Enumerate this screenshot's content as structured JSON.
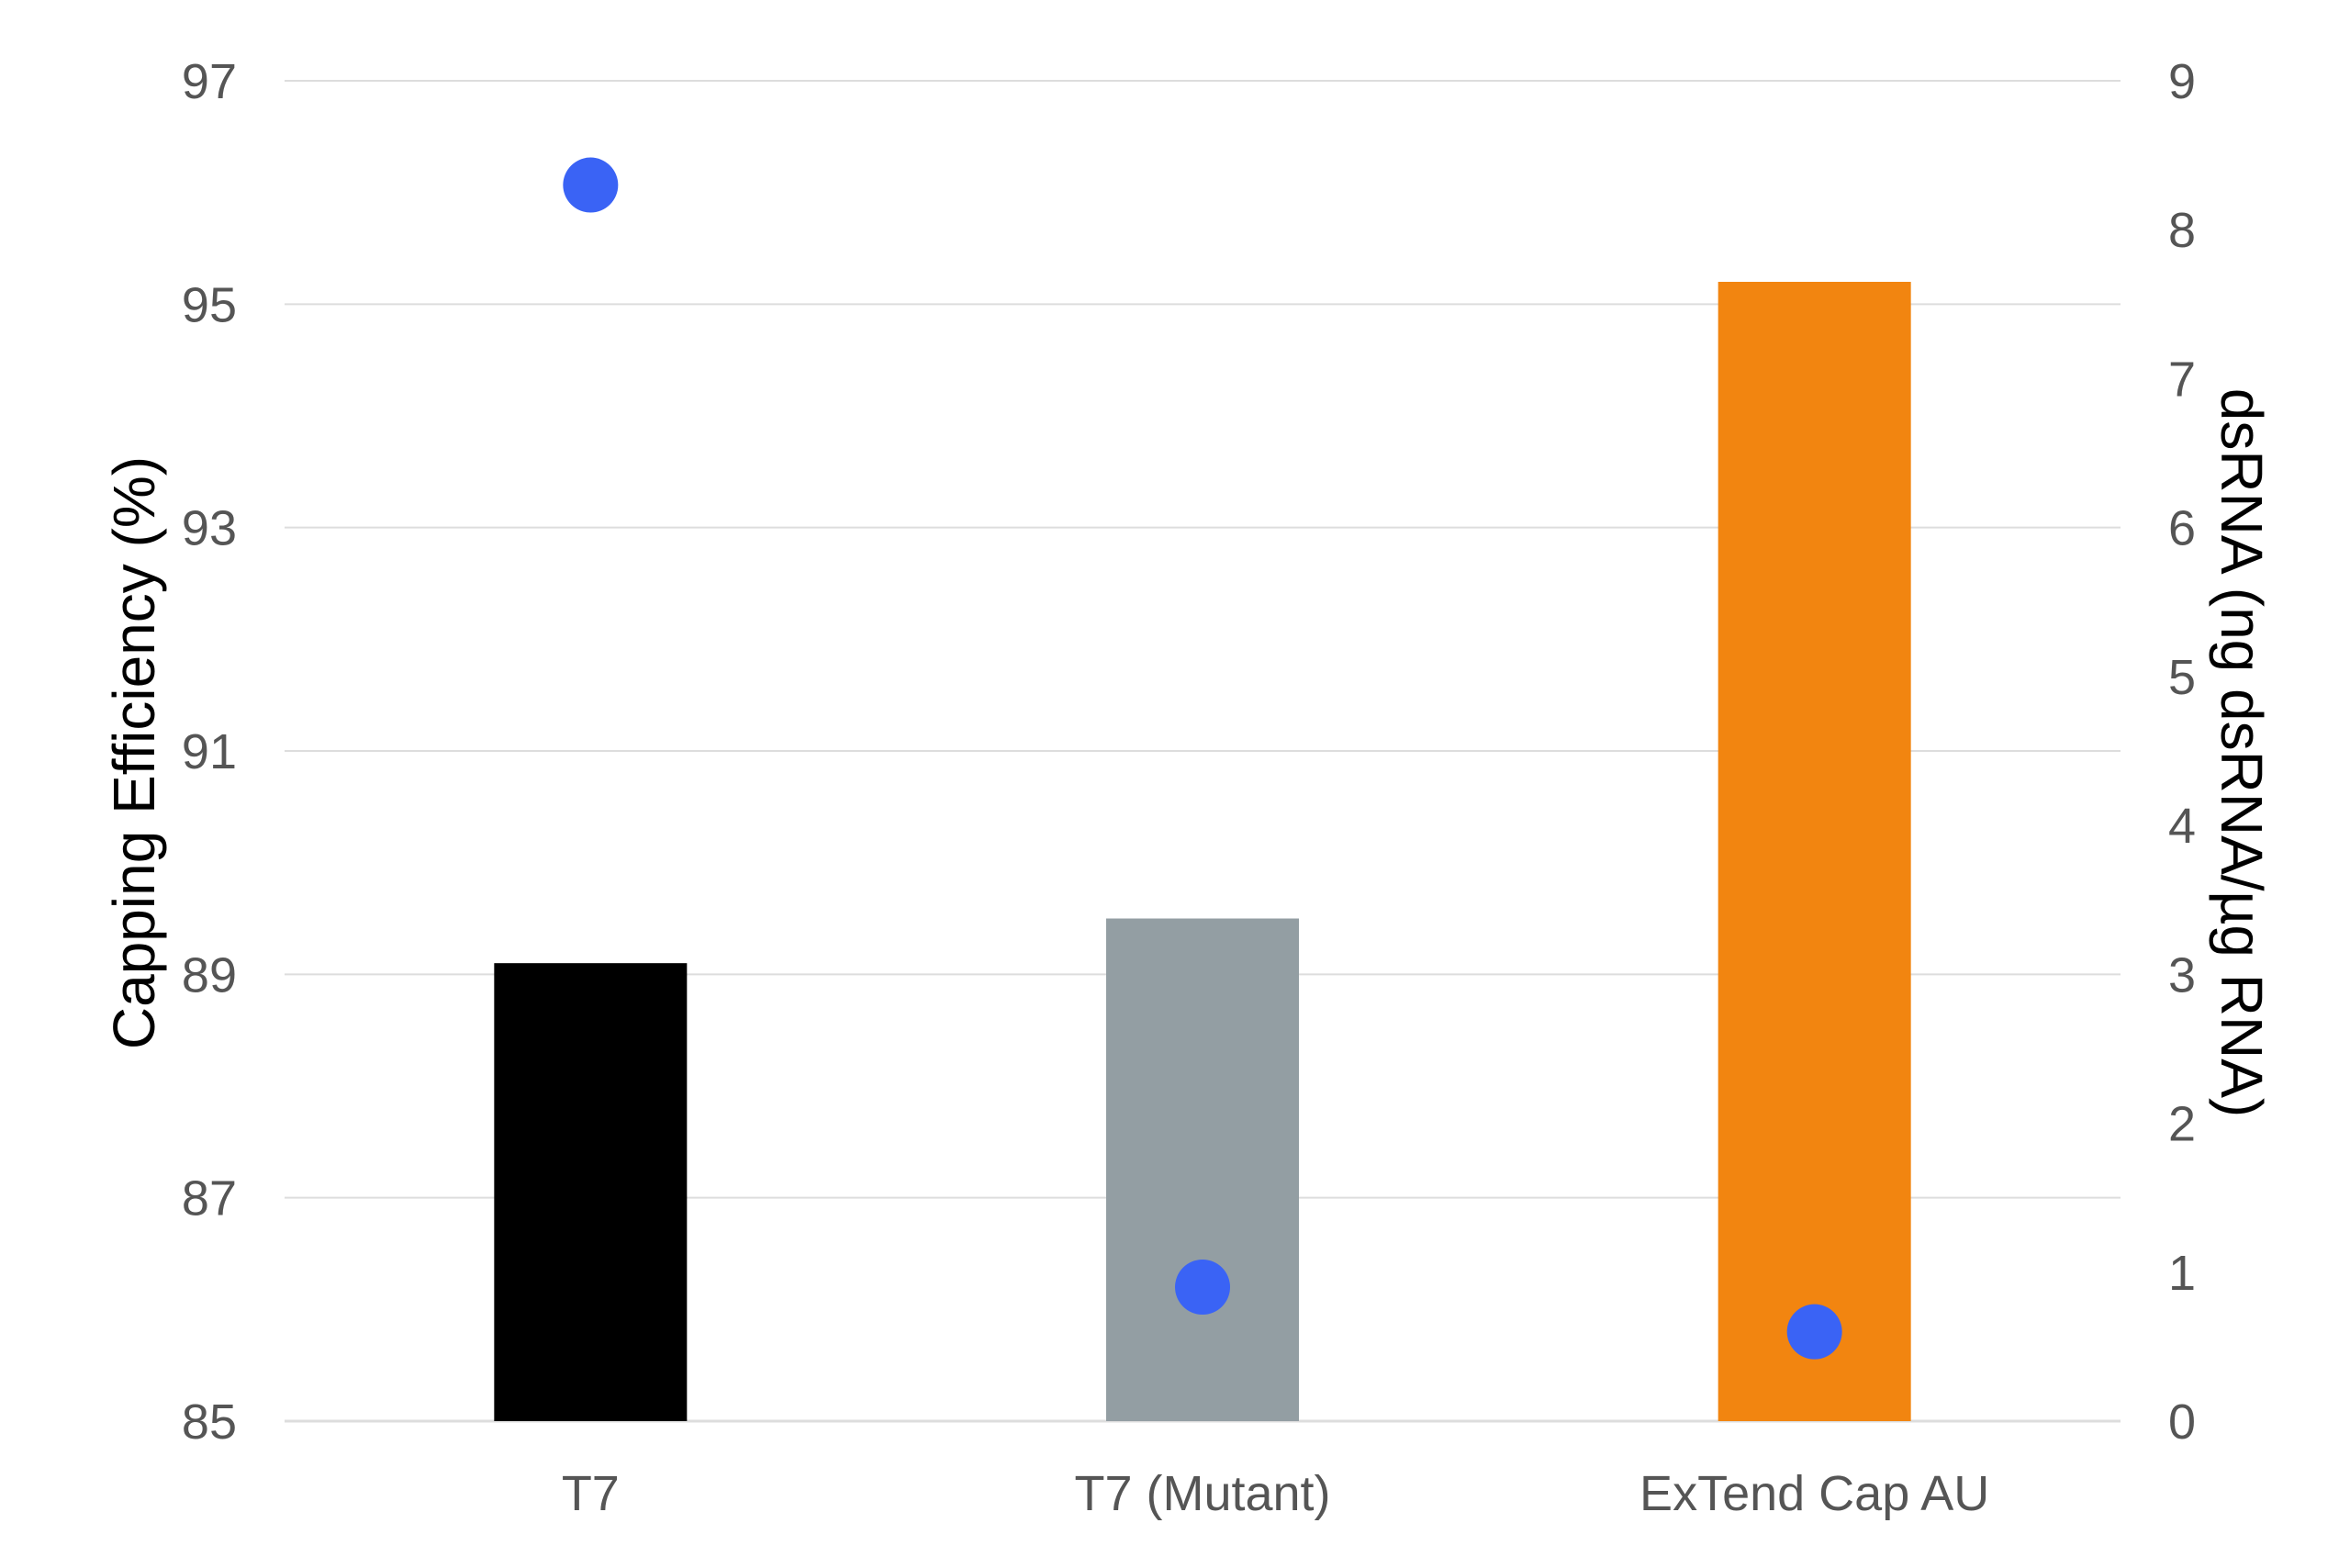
{
  "chart_data": {
    "type": "bar",
    "categories": [
      "T7",
      "T7 (Mutant)",
      "ExTend Cap AU"
    ],
    "series": [
      {
        "axis": "left",
        "mark": "bar",
        "values": [
          89.1,
          89.5,
          95.2
        ],
        "colors": [
          "#000000",
          "#939ea3",
          "#f28510"
        ]
      },
      {
        "axis": "right",
        "mark": "point",
        "values": [
          8.3,
          0.9,
          0.6
        ],
        "color": "#3a63f5"
      }
    ],
    "ylabel": "Capping Efficiency (%)",
    "y2label": "dsRNA (ng dsRNA/µg RNA)",
    "ylim": [
      85,
      97
    ],
    "y2lim": [
      0,
      9
    ],
    "yticks": [
      "85",
      "87",
      "89",
      "91",
      "93",
      "95",
      "97"
    ],
    "y2ticks": [
      "0",
      "1",
      "2",
      "3",
      "4",
      "5",
      "6",
      "7",
      "8",
      "9"
    ],
    "grid": true,
    "gridColor": "#dddddd"
  }
}
